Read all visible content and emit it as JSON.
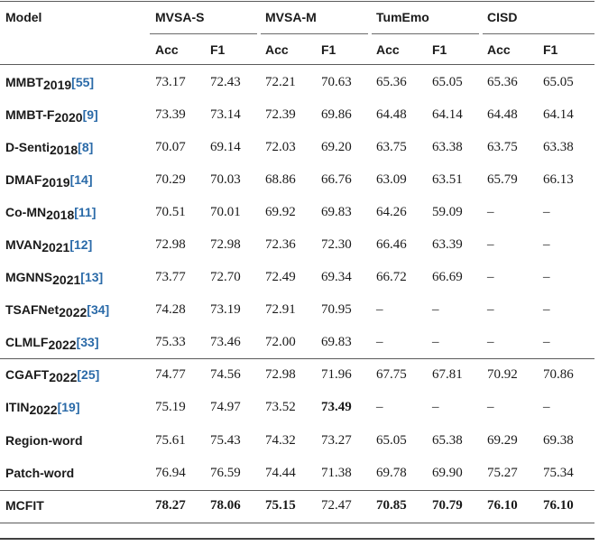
{
  "table": {
    "model_header": "Model",
    "groups": [
      "MVSA-S",
      "MVSA-M",
      "TumEmo",
      "CISD"
    ],
    "subheaders": [
      "Acc",
      "F1",
      "Acc",
      "F1",
      "Acc",
      "F1",
      "Acc",
      "F1"
    ],
    "rows": [
      {
        "name": "MMBT",
        "sub": "2019",
        "ref": "[55]",
        "values": [
          "73.17",
          "72.43",
          "72.21",
          "70.63",
          "65.36",
          "65.05",
          "65.36",
          "65.05"
        ]
      },
      {
        "name": "MMBT-F",
        "sub": "2020",
        "ref": "[9]",
        "values": [
          "73.39",
          "73.14",
          "72.39",
          "69.86",
          "64.48",
          "64.14",
          "64.48",
          "64.14"
        ]
      },
      {
        "name": "D-Senti",
        "sub": "2018",
        "ref": "[8]",
        "values": [
          "70.07",
          "69.14",
          "72.03",
          "69.20",
          "63.75",
          "63.38",
          "63.75",
          "63.38"
        ]
      },
      {
        "name": "DMAF",
        "sub": "2019",
        "ref": "[14]",
        "values": [
          "70.29",
          "70.03",
          "68.86",
          "66.76",
          "63.09",
          "63.51",
          "65.79",
          "66.13"
        ]
      },
      {
        "name": "Co-MN",
        "sub": "2018",
        "ref": "[11]",
        "values": [
          "70.51",
          "70.01",
          "69.92",
          "69.83",
          "64.26",
          "59.09",
          "–",
          "–"
        ]
      },
      {
        "name": "MVAN",
        "sub": "2021",
        "ref": "[12]",
        "values": [
          "72.98",
          "72.98",
          "72.36",
          "72.30",
          "66.46",
          "63.39",
          "–",
          "–"
        ]
      },
      {
        "name": "MGNNS",
        "sub": "2021",
        "ref": "[13]",
        "values": [
          "73.77",
          "72.70",
          "72.49",
          "69.34",
          "66.72",
          "66.69",
          "–",
          "–"
        ]
      },
      {
        "name": "TSAFNet",
        "sub": "2022",
        "ref": "[34]",
        "values": [
          "74.28",
          "73.19",
          "72.91",
          "70.95",
          "–",
          "–",
          "–",
          "–"
        ]
      },
      {
        "name": "CLMLF",
        "sub": "2022",
        "ref": "[33]",
        "values": [
          "75.33",
          "73.46",
          "72.00",
          "69.83",
          "–",
          "–",
          "–",
          "–"
        ]
      },
      {
        "name": "CGAFT",
        "sub": "2022",
        "ref": "[25]",
        "values": [
          "74.77",
          "74.56",
          "72.98",
          "71.96",
          "67.75",
          "67.81",
          "70.92",
          "70.86"
        ]
      },
      {
        "name": "ITIN",
        "sub": "2022",
        "ref": "[19]",
        "values": [
          "75.19",
          "74.97",
          "73.52",
          "73.49",
          "–",
          "–",
          "–",
          "–"
        ],
        "bold": [
          3
        ]
      },
      {
        "name": "Region-word",
        "sub": "",
        "ref": "",
        "values": [
          "75.61",
          "75.43",
          "74.32",
          "73.27",
          "65.05",
          "65.38",
          "69.29",
          "69.38"
        ]
      },
      {
        "name": "Patch-word",
        "sub": "",
        "ref": "",
        "values": [
          "76.94",
          "76.59",
          "74.44",
          "71.38",
          "69.78",
          "69.90",
          "75.27",
          "75.34"
        ]
      },
      {
        "name": "MCFIT",
        "sub": "",
        "ref": "",
        "values": [
          "78.27",
          "78.06",
          "75.15",
          "72.47",
          "70.85",
          "70.79",
          "76.10",
          "76.10"
        ],
        "bold": [
          0,
          1,
          2,
          4,
          5,
          6,
          7
        ]
      }
    ]
  }
}
